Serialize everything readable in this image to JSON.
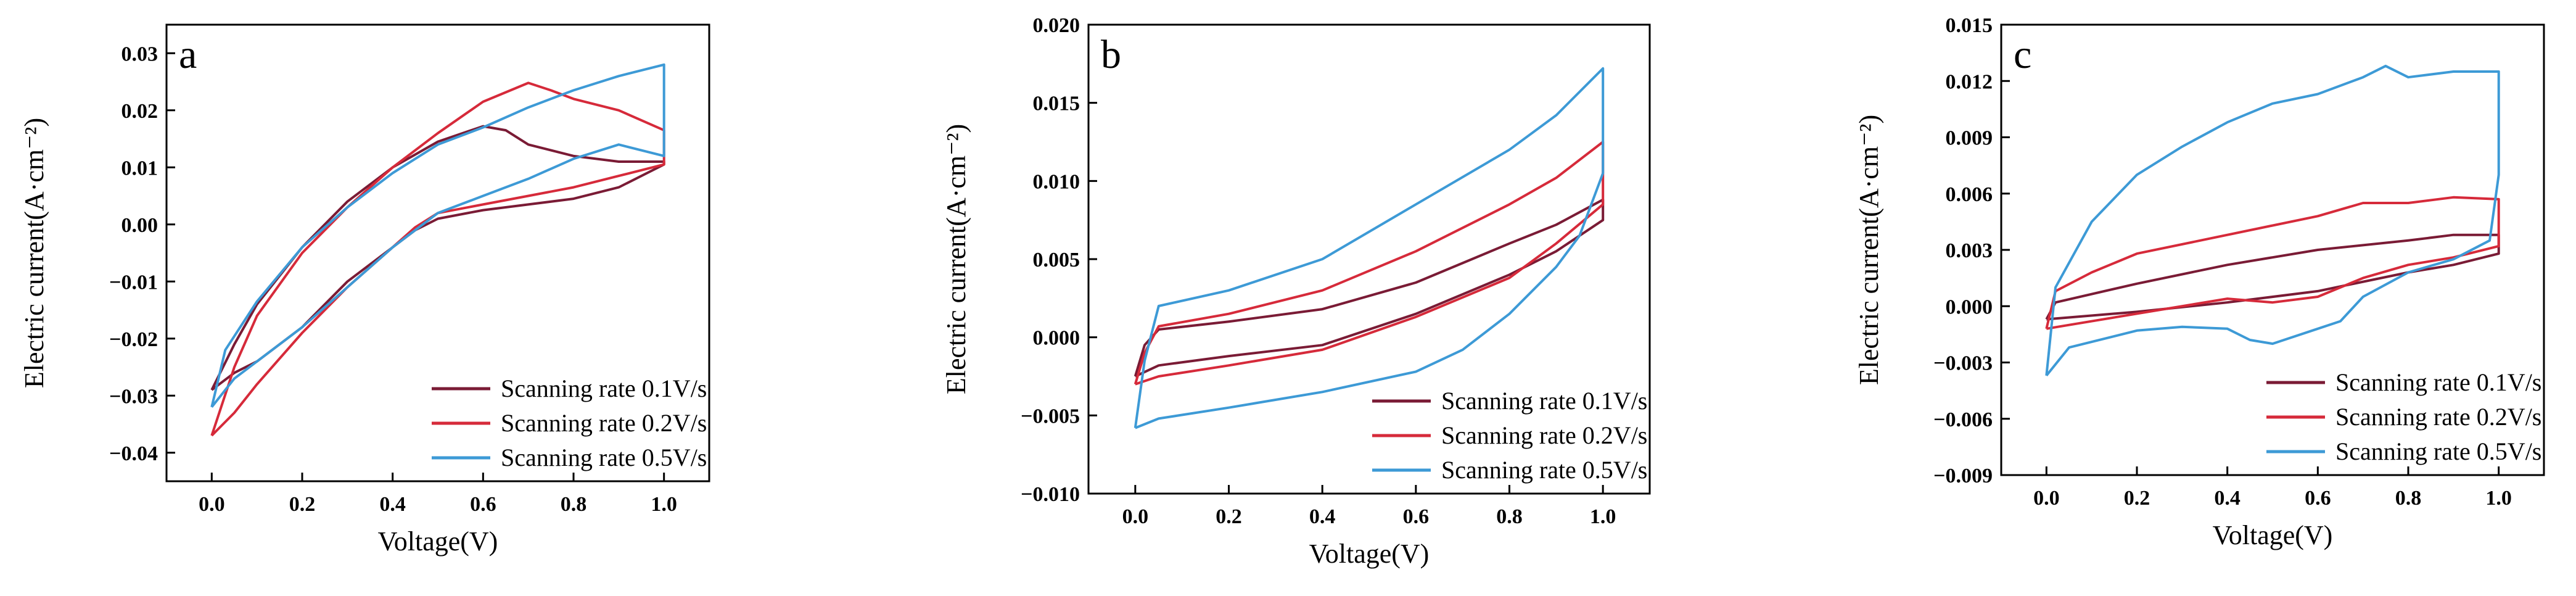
{
  "chart_data": [
    {
      "type": "line",
      "panel_label": "a",
      "xlabel": "Voltage(V)",
      "ylabel": "Electric current(A·cm⁻²)",
      "xlim": [
        -0.1,
        1.1
      ],
      "ylim": [
        -0.045,
        0.035
      ],
      "xticks": [
        0.0,
        0.2,
        0.4,
        0.6,
        0.8,
        1.0
      ],
      "xtick_labels": [
        "0.0",
        "0.2",
        "0.4",
        "0.6",
        "0.8",
        "1.0"
      ],
      "yticks": [
        -0.04,
        -0.03,
        -0.02,
        -0.01,
        0.0,
        0.01,
        0.02,
        0.03
      ],
      "ytick_labels": [
        "−0.04",
        "−0.03",
        "−0.02",
        "−0.01",
        "0.00",
        "0.01",
        "0.02",
        "0.03"
      ],
      "grid": false,
      "legend_position": "bottom-right",
      "series": [
        {
          "name": "Scanning rate 0.1V/s",
          "color": "#7a1b35",
          "points": [
            [
              0.0,
              -0.029
            ],
            [
              0.05,
              -0.021
            ],
            [
              0.1,
              -0.014
            ],
            [
              0.2,
              -0.004
            ],
            [
              0.3,
              0.004
            ],
            [
              0.4,
              0.01
            ],
            [
              0.5,
              0.0145
            ],
            [
              0.6,
              0.0172
            ],
            [
              0.65,
              0.0165
            ],
            [
              0.7,
              0.014
            ],
            [
              0.8,
              0.012
            ],
            [
              0.9,
              0.011
            ],
            [
              1.0,
              0.011
            ],
            [
              1.0,
              0.0105
            ],
            [
              0.9,
              0.0065
            ],
            [
              0.8,
              0.0045
            ],
            [
              0.7,
              0.0035
            ],
            [
              0.6,
              0.0025
            ],
            [
              0.5,
              0.001
            ],
            [
              0.45,
              -0.001
            ],
            [
              0.4,
              -0.004
            ],
            [
              0.3,
              -0.01
            ],
            [
              0.2,
              -0.018
            ],
            [
              0.1,
              -0.024
            ],
            [
              0.05,
              -0.026
            ],
            [
              0.0,
              -0.029
            ]
          ]
        },
        {
          "name": "Scanning rate 0.2V/s",
          "color": "#d62a3a",
          "points": [
            [
              0.0,
              -0.037
            ],
            [
              0.05,
              -0.025
            ],
            [
              0.1,
              -0.016
            ],
            [
              0.2,
              -0.005
            ],
            [
              0.3,
              0.003
            ],
            [
              0.4,
              0.01
            ],
            [
              0.5,
              0.016
            ],
            [
              0.6,
              0.0215
            ],
            [
              0.7,
              0.0248
            ],
            [
              0.75,
              0.0235
            ],
            [
              0.8,
              0.022
            ],
            [
              0.9,
              0.02
            ],
            [
              1.0,
              0.0165
            ],
            [
              1.0,
              0.0105
            ],
            [
              0.9,
              0.0085
            ],
            [
              0.8,
              0.0065
            ],
            [
              0.7,
              0.005
            ],
            [
              0.6,
              0.0035
            ],
            [
              0.5,
              0.002
            ],
            [
              0.45,
              -0.0005
            ],
            [
              0.4,
              -0.004
            ],
            [
              0.3,
              -0.011
            ],
            [
              0.2,
              -0.019
            ],
            [
              0.1,
              -0.028
            ],
            [
              0.05,
              -0.033
            ],
            [
              0.0,
              -0.037
            ]
          ]
        },
        {
          "name": "Scanning rate 0.5V/s",
          "color": "#3d9ad6",
          "points": [
            [
              0.0,
              -0.032
            ],
            [
              0.03,
              -0.022
            ],
            [
              0.1,
              -0.0135
            ],
            [
              0.2,
              -0.004
            ],
            [
              0.3,
              0.003
            ],
            [
              0.4,
              0.009
            ],
            [
              0.5,
              0.014
            ],
            [
              0.6,
              0.017
            ],
            [
              0.7,
              0.0205
            ],
            [
              0.8,
              0.0235
            ],
            [
              0.9,
              0.026
            ],
            [
              1.0,
              0.028
            ],
            [
              1.0,
              0.012
            ],
            [
              0.9,
              0.014
            ],
            [
              0.8,
              0.0115
            ],
            [
              0.7,
              0.008
            ],
            [
              0.6,
              0.005
            ],
            [
              0.5,
              0.002
            ],
            [
              0.45,
              -0.001
            ],
            [
              0.4,
              -0.004
            ],
            [
              0.3,
              -0.011
            ],
            [
              0.2,
              -0.018
            ],
            [
              0.1,
              -0.024
            ],
            [
              0.05,
              -0.027
            ],
            [
              0.0,
              -0.032
            ]
          ]
        }
      ]
    },
    {
      "type": "line",
      "panel_label": "b",
      "xlabel": "Voltage(V)",
      "ylabel": "Electric current(A·cm⁻²)",
      "xlim": [
        -0.1,
        1.1
      ],
      "ylim": [
        -0.01,
        0.02
      ],
      "xticks": [
        0.0,
        0.2,
        0.4,
        0.6,
        0.8,
        1.0
      ],
      "xtick_labels": [
        "0.0",
        "0.2",
        "0.4",
        "0.6",
        "0.8",
        "1.0"
      ],
      "yticks": [
        -0.01,
        -0.005,
        0.0,
        0.005,
        0.01,
        0.015,
        0.02
      ],
      "ytick_labels": [
        "−0.010",
        "−0.005",
        "0.000",
        "0.005",
        "0.010",
        "0.015",
        "0.020"
      ],
      "grid": false,
      "legend_position": "bottom-right",
      "series": [
        {
          "name": "Scanning rate 0.1V/s",
          "color": "#7a1b35",
          "points": [
            [
              0.0,
              -0.0025
            ],
            [
              0.02,
              -0.0005
            ],
            [
              0.05,
              0.0005
            ],
            [
              0.2,
              0.001
            ],
            [
              0.4,
              0.0018
            ],
            [
              0.6,
              0.0035
            ],
            [
              0.8,
              0.006
            ],
            [
              0.9,
              0.0072
            ],
            [
              1.0,
              0.0088
            ],
            [
              1.0,
              0.0075
            ],
            [
              0.9,
              0.0055
            ],
            [
              0.8,
              0.004
            ],
            [
              0.6,
              0.0015
            ],
            [
              0.4,
              -0.0005
            ],
            [
              0.2,
              -0.0012
            ],
            [
              0.05,
              -0.0018
            ],
            [
              0.0,
              -0.0025
            ]
          ]
        },
        {
          "name": "Scanning rate 0.2V/s",
          "color": "#d62a3a",
          "points": [
            [
              0.0,
              -0.003
            ],
            [
              0.02,
              -0.001
            ],
            [
              0.05,
              0.0007
            ],
            [
              0.2,
              0.0015
            ],
            [
              0.4,
              0.003
            ],
            [
              0.6,
              0.0055
            ],
            [
              0.8,
              0.0085
            ],
            [
              0.9,
              0.0102
            ],
            [
              1.0,
              0.0125
            ],
            [
              1.0,
              0.0085
            ],
            [
              0.9,
              0.006
            ],
            [
              0.8,
              0.0038
            ],
            [
              0.6,
              0.0013
            ],
            [
              0.4,
              -0.0008
            ],
            [
              0.2,
              -0.0018
            ],
            [
              0.05,
              -0.0025
            ],
            [
              0.0,
              -0.003
            ]
          ]
        },
        {
          "name": "Scanning rate 0.5V/s",
          "color": "#3d9ad6",
          "points": [
            [
              0.0,
              -0.0058
            ],
            [
              0.02,
              -0.0015
            ],
            [
              0.05,
              0.002
            ],
            [
              0.2,
              0.003
            ],
            [
              0.4,
              0.005
            ],
            [
              0.6,
              0.0085
            ],
            [
              0.8,
              0.012
            ],
            [
              0.9,
              0.0142
            ],
            [
              1.0,
              0.0172
            ],
            [
              1.0,
              0.0105
            ],
            [
              0.95,
              0.0065
            ],
            [
              0.9,
              0.0045
            ],
            [
              0.8,
              0.0015
            ],
            [
              0.7,
              -0.0008
            ],
            [
              0.6,
              -0.0022
            ],
            [
              0.4,
              -0.0035
            ],
            [
              0.2,
              -0.0045
            ],
            [
              0.05,
              -0.0052
            ],
            [
              0.0,
              -0.0058
            ]
          ]
        }
      ]
    },
    {
      "type": "line",
      "panel_label": "c",
      "xlabel": "Voltage(V)",
      "ylabel": "Electric current(A·cm⁻²)",
      "xlim": [
        -0.1,
        1.1
      ],
      "ylim": [
        -0.009,
        0.015
      ],
      "xticks": [
        0.0,
        0.2,
        0.4,
        0.6,
        0.8,
        1.0
      ],
      "xtick_labels": [
        "0.0",
        "0.2",
        "0.4",
        "0.6",
        "0.8",
        "1.0"
      ],
      "yticks": [
        -0.009,
        -0.006,
        -0.003,
        0.0,
        0.003,
        0.006,
        0.009,
        0.012,
        0.015
      ],
      "ytick_labels": [
        "−0.009",
        "−0.006",
        "−0.003",
        "0.000",
        "0.003",
        "0.006",
        "0.009",
        "0.012",
        "0.015"
      ],
      "grid": false,
      "legend_position": "bottom-right",
      "series": [
        {
          "name": "Scanning rate 0.1V/s",
          "color": "#7a1b35",
          "points": [
            [
              0.0,
              -0.0007
            ],
            [
              0.02,
              0.0002
            ],
            [
              0.2,
              0.0012
            ],
            [
              0.4,
              0.0022
            ],
            [
              0.6,
              0.003
            ],
            [
              0.8,
              0.0035
            ],
            [
              0.9,
              0.0038
            ],
            [
              1.0,
              0.0038
            ],
            [
              1.0,
              0.0028
            ],
            [
              0.9,
              0.0022
            ],
            [
              0.8,
              0.0018
            ],
            [
              0.6,
              0.0008
            ],
            [
              0.4,
              0.0002
            ],
            [
              0.2,
              -0.0003
            ],
            [
              0.05,
              -0.0006
            ],
            [
              0.0,
              -0.0007
            ]
          ]
        },
        {
          "name": "Scanning rate 0.2V/s",
          "color": "#d62a3a",
          "points": [
            [
              0.0,
              -0.0012
            ],
            [
              0.02,
              0.0008
            ],
            [
              0.1,
              0.0018
            ],
            [
              0.2,
              0.0028
            ],
            [
              0.4,
              0.0038
            ],
            [
              0.6,
              0.0048
            ],
            [
              0.7,
              0.0055
            ],
            [
              0.8,
              0.0055
            ],
            [
              0.9,
              0.0058
            ],
            [
              1.0,
              0.0057
            ],
            [
              1.0,
              0.0032
            ],
            [
              0.9,
              0.0026
            ],
            [
              0.8,
              0.0022
            ],
            [
              0.7,
              0.0015
            ],
            [
              0.6,
              0.0005
            ],
            [
              0.5,
              0.0002
            ],
            [
              0.4,
              0.0004
            ],
            [
              0.2,
              -0.0004
            ],
            [
              0.05,
              -0.001
            ],
            [
              0.0,
              -0.0012
            ]
          ]
        },
        {
          "name": "Scanning rate 0.5V/s",
          "color": "#3d9ad6",
          "points": [
            [
              0.0,
              -0.0037
            ],
            [
              0.02,
              0.001
            ],
            [
              0.1,
              0.0045
            ],
            [
              0.2,
              0.007
            ],
            [
              0.3,
              0.0085
            ],
            [
              0.4,
              0.0098
            ],
            [
              0.5,
              0.0108
            ],
            [
              0.6,
              0.0113
            ],
            [
              0.7,
              0.0122
            ],
            [
              0.75,
              0.0128
            ],
            [
              0.8,
              0.0122
            ],
            [
              0.9,
              0.0125
            ],
            [
              1.0,
              0.0125
            ],
            [
              1.0,
              0.007
            ],
            [
              0.98,
              0.0035
            ],
            [
              0.9,
              0.0025
            ],
            [
              0.8,
              0.0018
            ],
            [
              0.7,
              0.0005
            ],
            [
              0.65,
              -0.0008
            ],
            [
              0.6,
              -0.0012
            ],
            [
              0.5,
              -0.002
            ],
            [
              0.45,
              -0.0018
            ],
            [
              0.4,
              -0.0012
            ],
            [
              0.3,
              -0.0011
            ],
            [
              0.2,
              -0.0013
            ],
            [
              0.05,
              -0.0022
            ],
            [
              0.0,
              -0.0037
            ]
          ]
        }
      ]
    }
  ]
}
